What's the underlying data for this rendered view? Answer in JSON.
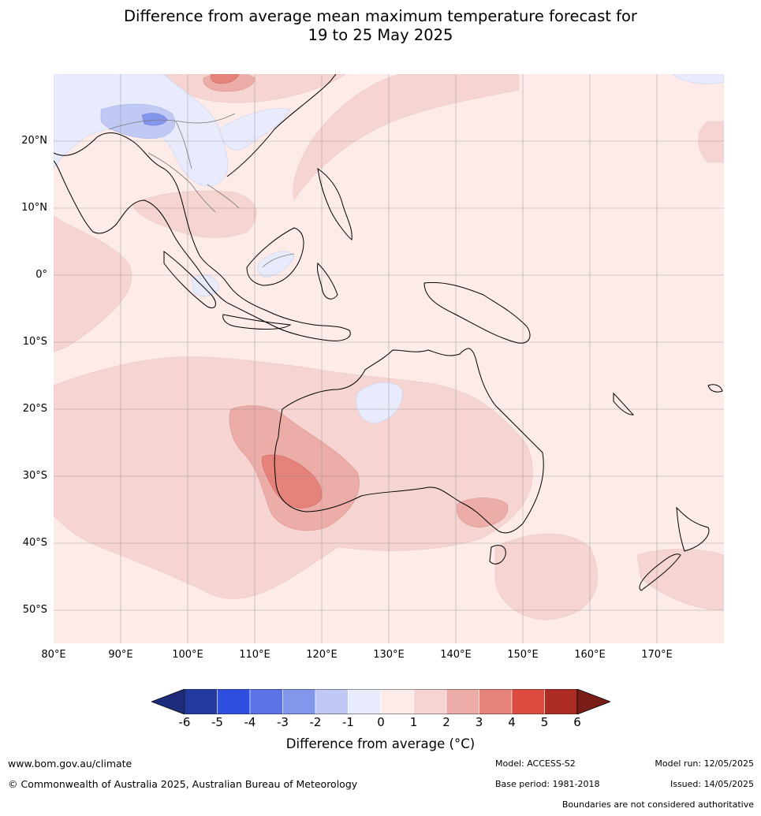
{
  "title_line1": "Difference from average mean maximum temperature forecast for",
  "title_line2": "19 to 25 May 2025",
  "lat_labels": [
    "20°N",
    "10°N",
    "0°",
    "10°S",
    "20°S",
    "30°S",
    "40°S",
    "50°S"
  ],
  "lon_labels": [
    "80°E",
    "90°E",
    "100°E",
    "110°E",
    "120°E",
    "130°E",
    "140°E",
    "150°E",
    "160°E",
    "170°E"
  ],
  "colorbar": {
    "ticks": [
      "-6",
      "-5",
      "-4",
      "-3",
      "-2",
      "-1",
      "0",
      "1",
      "2",
      "3",
      "4",
      "5",
      "6"
    ],
    "colors": [
      "#233a9e",
      "#2f4fe0",
      "#5a74e6",
      "#8396ec",
      "#c0c8f4",
      "#e7ebfb",
      "#fcebe9",
      "#f5d4d1",
      "#ecaca7",
      "#e5837b",
      "#dc4b3f",
      "#ac2b22"
    ],
    "under_color": "#1d2d7c",
    "over_color": "#7a1c17",
    "label": "Difference from average (°C)"
  },
  "map": {
    "type": "filled-contour",
    "lon_range": [
      80,
      180
    ],
    "lat_range": [
      -55,
      30
    ],
    "background_anomaly_band": "0 to 1",
    "regions": [
      {
        "name": "western-australia-max",
        "band": "3 to 4"
      },
      {
        "name": "southwest-australia",
        "band": "2 to 3"
      },
      {
        "name": "southeast-australia",
        "band": "2 to 3"
      },
      {
        "name": "southern-china",
        "band": "-3 to -2"
      },
      {
        "name": "north-australia-cool-patch",
        "band": "-1 to 0"
      }
    ]
  },
  "footer": {
    "website": "www.bom.gov.au/climate",
    "copyright": "© Commonwealth of Australia 2025, Australian Bureau of Meteorology",
    "model": "Model: ACCESS-S2",
    "base_period": "Base period: 1981-2018",
    "model_run": "Model run: 12/05/2025",
    "issued": "Issued: 14/05/2025",
    "disclaimer": "Boundaries are not considered authoritative"
  }
}
